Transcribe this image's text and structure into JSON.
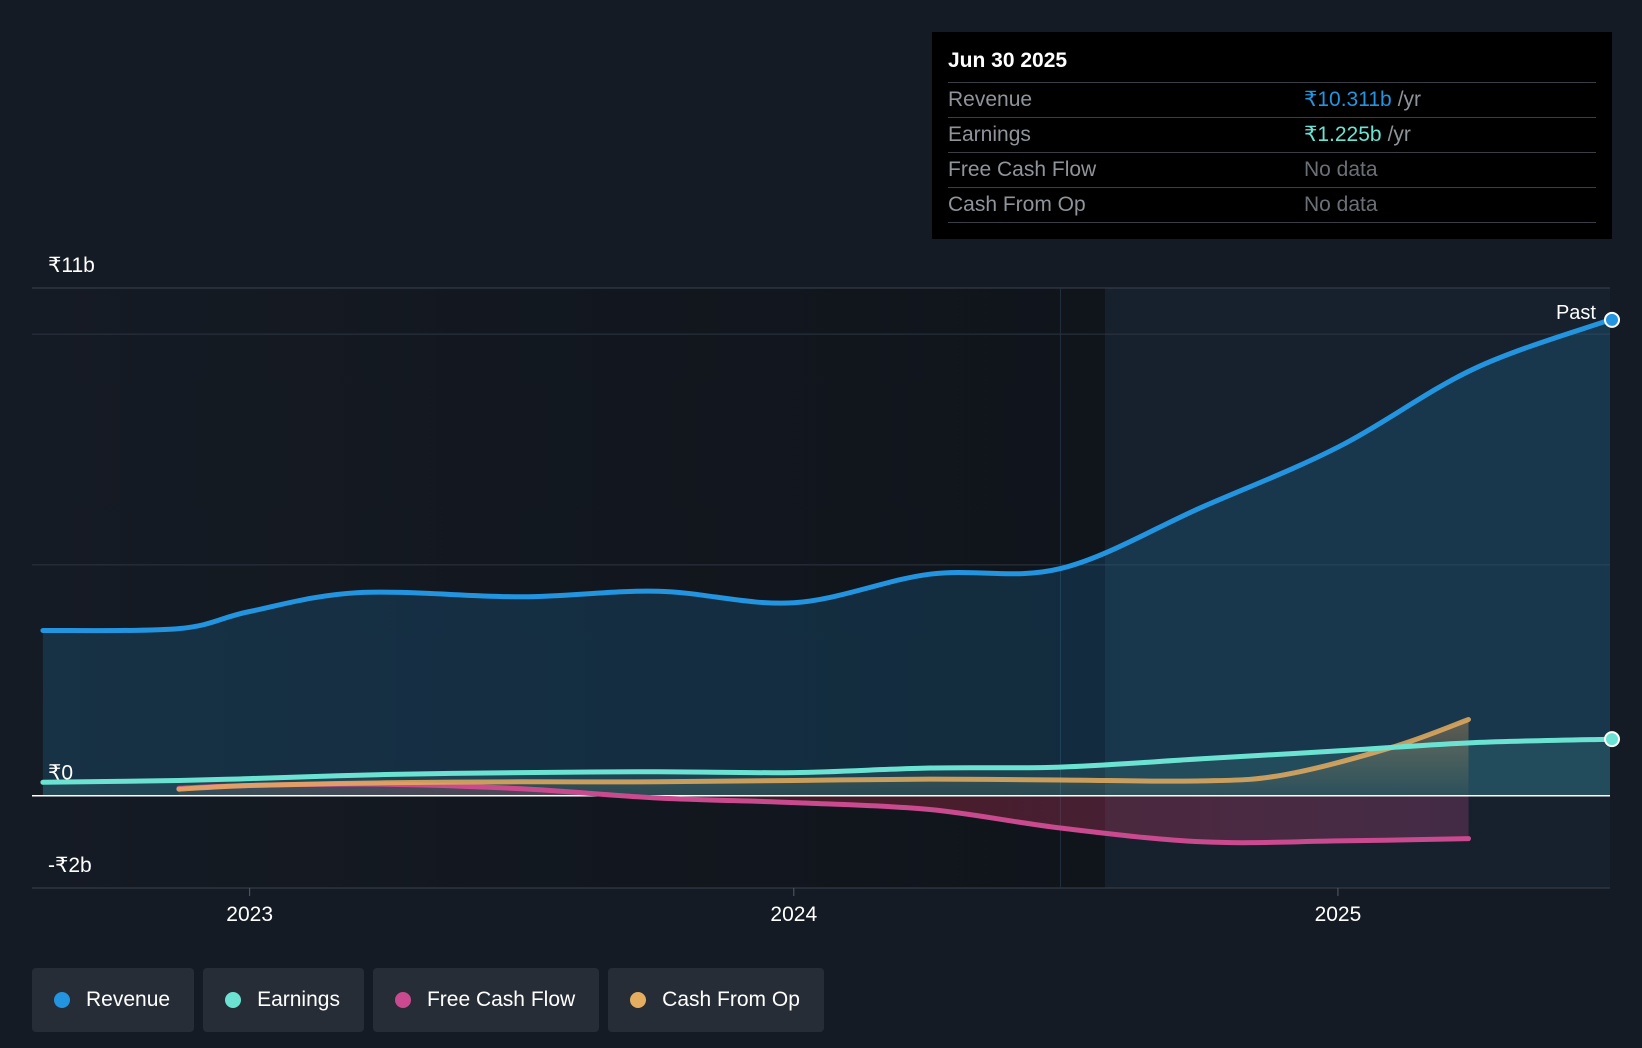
{
  "tooltip": {
    "date": "Jun 30 2025",
    "rows": [
      {
        "label": "Revenue",
        "value": "₹10.311b",
        "unit": "/yr"
      },
      {
        "label": "Earnings",
        "value": "₹1.225b",
        "unit": "/yr"
      },
      {
        "label": "Free Cash Flow",
        "value": "No data"
      },
      {
        "label": "Cash From Op",
        "value": "No data"
      }
    ]
  },
  "legend": {
    "items": [
      {
        "label": "Revenue",
        "color": "#2394df"
      },
      {
        "label": "Earnings",
        "color": "#6ce3d2"
      },
      {
        "label": "Free Cash Flow",
        "color": "#c94a8e"
      },
      {
        "label": "Cash From Op",
        "color": "#e5ad5f"
      }
    ]
  },
  "chart_data": {
    "type": "line",
    "title": "",
    "xlabel": "",
    "ylabel": "",
    "ylim": [
      -2,
      11
    ],
    "xlim": [
      2022.6,
      2025.5
    ],
    "y_axis_labels": [
      {
        "value": 11,
        "text": "₹11b"
      },
      {
        "value": 0,
        "text": "₹0"
      },
      {
        "value": -2,
        "text": "-₹2b"
      }
    ],
    "x_ticks": [
      {
        "value": 2023.0,
        "text": "2023"
      },
      {
        "value": 2024.0,
        "text": "2024"
      },
      {
        "value": 2025.0,
        "text": "2025"
      }
    ],
    "gridlines": [
      10,
      5
    ],
    "past_divider_x": 2024.49,
    "past_label": "Past",
    "series": [
      {
        "name": "Revenue",
        "color": "#2394df",
        "x": [
          2022.62,
          2022.87,
          2023.0,
          2023.2,
          2023.5,
          2023.75,
          2024.0,
          2024.25,
          2024.49,
          2024.75,
          2025.0,
          2025.25,
          2025.5
        ],
        "values": [
          3.58,
          3.62,
          3.99,
          4.4,
          4.31,
          4.43,
          4.18,
          4.8,
          4.92,
          6.25,
          7.55,
          9.25,
          10.31
        ]
      },
      {
        "name": "Earnings",
        "color": "#6ce3d2",
        "x": [
          2022.62,
          2022.87,
          2023.0,
          2023.25,
          2023.5,
          2023.75,
          2024.0,
          2024.25,
          2024.49,
          2024.75,
          2025.0,
          2025.25,
          2025.5
        ],
        "values": [
          0.29,
          0.33,
          0.37,
          0.46,
          0.5,
          0.52,
          0.5,
          0.6,
          0.62,
          0.8,
          0.97,
          1.15,
          1.225
        ]
      },
      {
        "name": "Free Cash Flow",
        "color": "#c94a8e",
        "x": [
          2022.87,
          2023.0,
          2023.25,
          2023.5,
          2023.75,
          2024.0,
          2024.25,
          2024.49,
          2024.75,
          2025.0,
          2025.24
        ],
        "values": [
          0.16,
          0.22,
          0.25,
          0.15,
          -0.05,
          -0.15,
          -0.3,
          -0.7,
          -1.0,
          -0.98,
          -0.93
        ]
      },
      {
        "name": "Cash From Op",
        "color": "#e5ad5f",
        "x": [
          2022.87,
          2023.0,
          2023.25,
          2023.5,
          2023.75,
          2024.0,
          2024.25,
          2024.49,
          2024.75,
          2024.9,
          2025.1,
          2025.24
        ],
        "values": [
          0.14,
          0.22,
          0.28,
          0.3,
          0.3,
          0.33,
          0.36,
          0.34,
          0.32,
          0.45,
          1.05,
          1.65
        ]
      }
    ]
  }
}
